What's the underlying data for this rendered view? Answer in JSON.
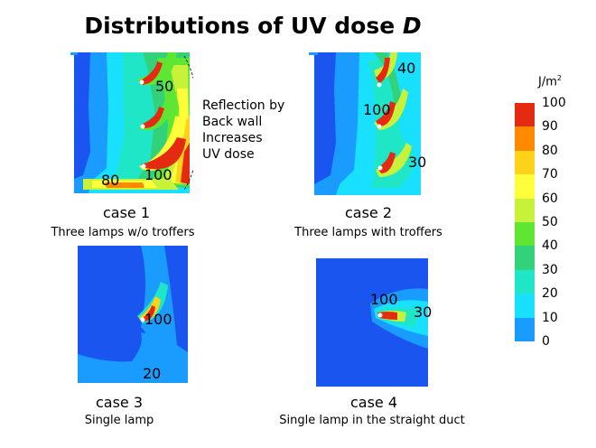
{
  "title": {
    "text": "Distributions of UV dose ",
    "symbol": "D"
  },
  "colorbar": {
    "unit": "J/m",
    "unit_exp": "2",
    "ticks": [
      "100",
      "90",
      "80",
      "70",
      "60",
      "50",
      "40",
      "30",
      "20",
      "10",
      "0"
    ],
    "colors": [
      "#e52a12",
      "#ff8a00",
      "#ffd21a",
      "#ffff3a",
      "#c8f23a",
      "#5ee632",
      "#32d27a",
      "#20e6c8",
      "#19e0ff",
      "#1a9cff",
      "#1a55f0"
    ]
  },
  "panels": [
    {
      "case_label": "case 1",
      "description": "Three lamps w/o troffers",
      "contour_labels": [
        "50",
        "100",
        "80"
      ]
    },
    {
      "case_label": "case 2",
      "description": "Three lamps with troffers",
      "contour_labels": [
        "40",
        "100",
        "30"
      ]
    },
    {
      "case_label": "case 3",
      "description": "Single lamp",
      "contour_labels": [
        "100",
        "20"
      ]
    },
    {
      "case_label": "case 4",
      "description": "Single lamp in the straight duct",
      "contour_labels": [
        "100",
        "30"
      ]
    }
  ],
  "annotation": {
    "lines": [
      "Reflection by",
      "Back wall",
      "Increases",
      "UV dose"
    ]
  }
}
